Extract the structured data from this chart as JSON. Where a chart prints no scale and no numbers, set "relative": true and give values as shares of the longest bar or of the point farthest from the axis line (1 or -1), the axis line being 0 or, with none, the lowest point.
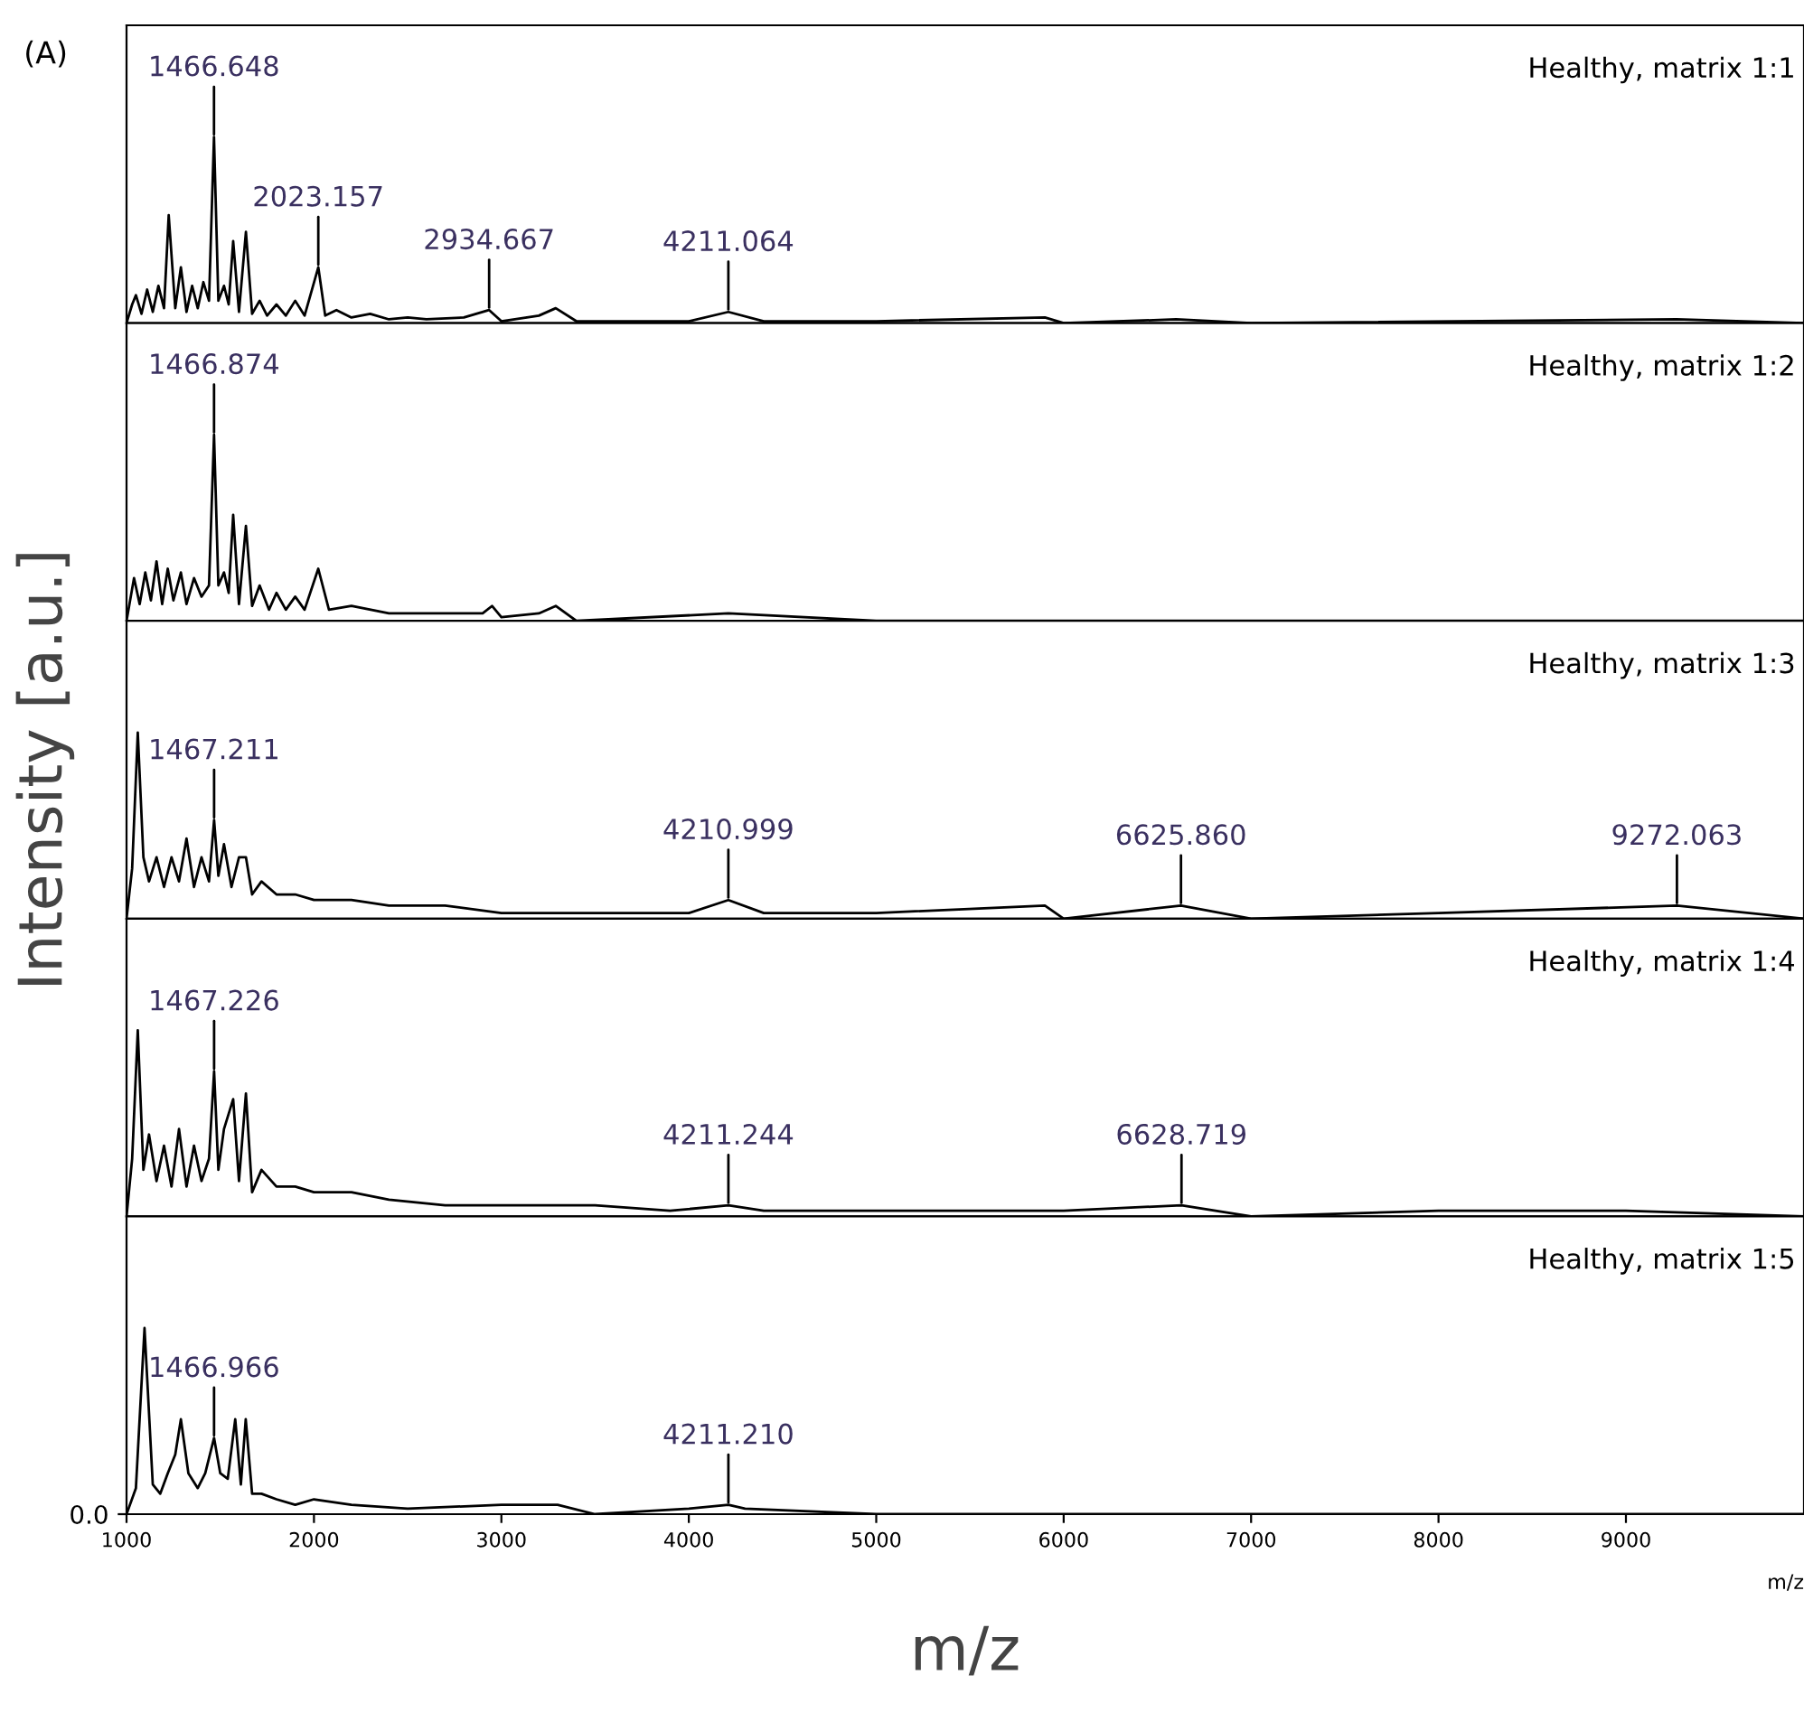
{
  "chart_data": [
    {
      "type": "line",
      "relative": true,
      "xlim": [
        1000,
        9950
      ],
      "xticks": [
        1000,
        2000,
        3000,
        4000,
        5000,
        6000,
        7000,
        8000,
        9000
      ],
      "tick_labels": false,
      "grid": false,
      "legend": false,
      "marker": "none",
      "line_style": "solid",
      "annotations": [
        "(A)",
        {
          "text": "1466.648",
          "x": 1466.648,
          "y": 1.0
        },
        {
          "text": "2023.157",
          "x": 2023.157,
          "y": 0.3
        },
        {
          "text": "2934.667",
          "x": 2934.667,
          "y": 0.07
        },
        {
          "text": "4211.064",
          "x": 4211.064,
          "y": 0.06
        }
      ],
      "series": [
        {
          "name": "Healthy, matrix 1:1",
          "color": "#000000",
          "x": [
            1000,
            1030,
            1050,
            1080,
            1110,
            1140,
            1170,
            1200,
            1225,
            1260,
            1290,
            1320,
            1350,
            1380,
            1410,
            1440,
            1466.648,
            1490,
            1520,
            1545,
            1569,
            1600,
            1637,
            1670,
            1710,
            1750,
            1800,
            1850,
            1900,
            1950,
            2023.157,
            2060,
            2120,
            2200,
            2300,
            2400,
            2500,
            2600,
            2800,
            2934.667,
            3000,
            3200,
            3290,
            3400,
            3600,
            4000,
            4211.064,
            4400,
            5000,
            5900,
            6000,
            6600,
            7000,
            9270,
            9950
          ],
          "values": [
            0,
            0.1,
            0.15,
            0.05,
            0.18,
            0.06,
            0.2,
            0.08,
            0.58,
            0.08,
            0.3,
            0.06,
            0.2,
            0.08,
            0.22,
            0.12,
            1.0,
            0.12,
            0.2,
            0.1,
            0.44,
            0.06,
            0.49,
            0.05,
            0.12,
            0.04,
            0.1,
            0.04,
            0.12,
            0.04,
            0.3,
            0.04,
            0.07,
            0.03,
            0.05,
            0.02,
            0.03,
            0.02,
            0.03,
            0.07,
            0.01,
            0.04,
            0.08,
            0.01,
            0.01,
            0.01,
            0.06,
            0.01,
            0.01,
            0.03,
            0,
            0.02,
            0,
            0.02,
            0
          ]
        }
      ]
    },
    {
      "type": "line",
      "relative": true,
      "xlim": [
        1000,
        9950
      ],
      "xticks": [
        1000,
        2000,
        3000,
        4000,
        5000,
        6000,
        7000,
        8000,
        9000
      ],
      "tick_labels": false,
      "grid": false,
      "legend": false,
      "marker": "none",
      "line_style": "solid",
      "annotations": [
        {
          "text": "1466.874",
          "x": 1466.874,
          "y": 1.0
        }
      ],
      "series": [
        {
          "name": "Healthy, matrix 1:2",
          "color": "#000000",
          "x": [
            1000,
            1040,
            1070,
            1100,
            1130,
            1160,
            1190,
            1220,
            1250,
            1290,
            1320,
            1360,
            1400,
            1440,
            1466.874,
            1490,
            1520,
            1545,
            1569,
            1600,
            1637,
            1670,
            1710,
            1760,
            1800,
            1850,
            1900,
            1950,
            2023,
            2080,
            2200,
            2400,
            2600,
            2900,
            2950,
            3000,
            3200,
            3290,
            3400,
            4211,
            5000,
            9950
          ],
          "values": [
            0,
            0.23,
            0.09,
            0.26,
            0.11,
            0.32,
            0.09,
            0.28,
            0.11,
            0.26,
            0.09,
            0.23,
            0.13,
            0.19,
            1,
            0.19,
            0.26,
            0.15,
            0.57,
            0.09,
            0.51,
            0.08,
            0.19,
            0.06,
            0.15,
            0.06,
            0.13,
            0.06,
            0.28,
            0.06,
            0.08,
            0.04,
            0.04,
            0.04,
            0.08,
            0.02,
            0.04,
            0.08,
            0,
            0.04,
            0,
            0
          ]
        }
      ]
    },
    {
      "type": "line",
      "relative": true,
      "ylabel": "Intensity [a.u.]",
      "xlim": [
        1000,
        9950
      ],
      "xticks": [
        1000,
        2000,
        3000,
        4000,
        5000,
        6000,
        7000,
        8000,
        9000
      ],
      "tick_labels": false,
      "grid": false,
      "legend": false,
      "marker": "none",
      "line_style": "solid",
      "annotations": [
        {
          "text": "1467.211",
          "x": 1467.211,
          "y": 0.53
        },
        {
          "text": "4210.999",
          "x": 4210.999,
          "y": 0.1
        },
        {
          "text": "6625.860",
          "x": 6625.86,
          "y": 0.07
        },
        {
          "text": "9272.063",
          "x": 9272.063,
          "y": 0.07
        }
      ],
      "series": [
        {
          "name": "Healthy, matrix 1:3",
          "color": "#000000",
          "x": [
            1000,
            1030,
            1060,
            1090,
            1120,
            1160,
            1200,
            1240,
            1280,
            1320,
            1360,
            1400,
            1440,
            1467.211,
            1490,
            1520,
            1560,
            1600,
            1637,
            1670,
            1720,
            1800,
            1900,
            2000,
            2200,
            2400,
            2700,
            3000,
            3500,
            4000,
            4210.999,
            4400,
            5000,
            5900,
            6000,
            6625.86,
            7000,
            8000,
            9272.063,
            9950
          ],
          "values": [
            0,
            0.27,
            1,
            0.33,
            0.2,
            0.33,
            0.17,
            0.33,
            0.2,
            0.43,
            0.17,
            0.33,
            0.2,
            0.53,
            0.23,
            0.4,
            0.17,
            0.33,
            0.33,
            0.13,
            0.2,
            0.13,
            0.13,
            0.1,
            0.1,
            0.07,
            0.07,
            0.03,
            0.03,
            0.03,
            0.1,
            0.03,
            0.03,
            0.07,
            0,
            0.07,
            0,
            0.03,
            0.07,
            0
          ]
        }
      ]
    },
    {
      "type": "line",
      "relative": true,
      "xlim": [
        1000,
        9950
      ],
      "xticks": [
        1000,
        2000,
        3000,
        4000,
        5000,
        6000,
        7000,
        8000,
        9000
      ],
      "tick_labels": false,
      "grid": false,
      "legend": false,
      "marker": "none",
      "line_style": "solid",
      "annotations": [
        {
          "text": "1467.226",
          "x": 1467.226,
          "y": 0.78
        },
        {
          "text": "4211.244",
          "x": 4211.244,
          "y": 0.06
        },
        {
          "text": "6628.719",
          "x": 6628.719,
          "y": 0.06
        }
      ],
      "series": [
        {
          "name": "Healthy, matrix 1:4",
          "color": "#000000",
          "x": [
            1000,
            1030,
            1060,
            1090,
            1120,
            1160,
            1200,
            1240,
            1280,
            1320,
            1360,
            1400,
            1440,
            1467.226,
            1490,
            1520,
            1569,
            1600,
            1637,
            1670,
            1720,
            1800,
            1900,
            2000,
            2200,
            2400,
            2700,
            3000,
            3500,
            3900,
            4211.244,
            4400,
            5000,
            6000,
            6628.719,
            7000,
            8000,
            9000,
            9950
          ],
          "values": [
            0,
            0.31,
            1,
            0.25,
            0.44,
            0.19,
            0.38,
            0.16,
            0.47,
            0.16,
            0.38,
            0.19,
            0.31,
            0.78,
            0.25,
            0.47,
            0.63,
            0.19,
            0.66,
            0.13,
            0.25,
            0.16,
            0.16,
            0.13,
            0.13,
            0.09,
            0.06,
            0.06,
            0.06,
            0.03,
            0.06,
            0.03,
            0.03,
            0.03,
            0.06,
            0,
            0.03,
            0.03,
            0
          ]
        }
      ]
    },
    {
      "type": "line",
      "relative": true,
      "xlabel": "m/z",
      "xlim": [
        1000,
        9950
      ],
      "xticks": [
        1000,
        2000,
        3000,
        4000,
        5000,
        6000,
        7000,
        8000,
        9000
      ],
      "tick_labels": "x",
      "grid": false,
      "legend": false,
      "marker": "none",
      "line_style": "solid",
      "annotations": [
        "0.0",
        "m/z",
        {
          "text": "1466.966",
          "x": 1466.966,
          "y": 0.41
        },
        {
          "text": "4211.210",
          "x": 4211.21,
          "y": 0.05
        }
      ],
      "series": [
        {
          "name": "Healthy, matrix 1:5",
          "color": "#000000",
          "x": [
            1000,
            1050,
            1096,
            1140,
            1180,
            1220,
            1260,
            1290,
            1330,
            1380,
            1420,
            1466.966,
            1500,
            1540,
            1580,
            1610,
            1636,
            1670,
            1720,
            1800,
            1900,
            2000,
            2200,
            2500,
            3000,
            3300,
            3500,
            4000,
            4211.21,
            4300,
            5000,
            9950
          ],
          "values": [
            0,
            0.14,
            1,
            0.16,
            0.11,
            0.22,
            0.32,
            0.51,
            0.22,
            0.14,
            0.22,
            0.41,
            0.22,
            0.19,
            0.51,
            0.16,
            0.51,
            0.11,
            0.11,
            0.08,
            0.05,
            0.08,
            0.05,
            0.03,
            0.05,
            0.05,
            0,
            0.03,
            0.05,
            0.03,
            0,
            0
          ]
        }
      ]
    }
  ]
}
